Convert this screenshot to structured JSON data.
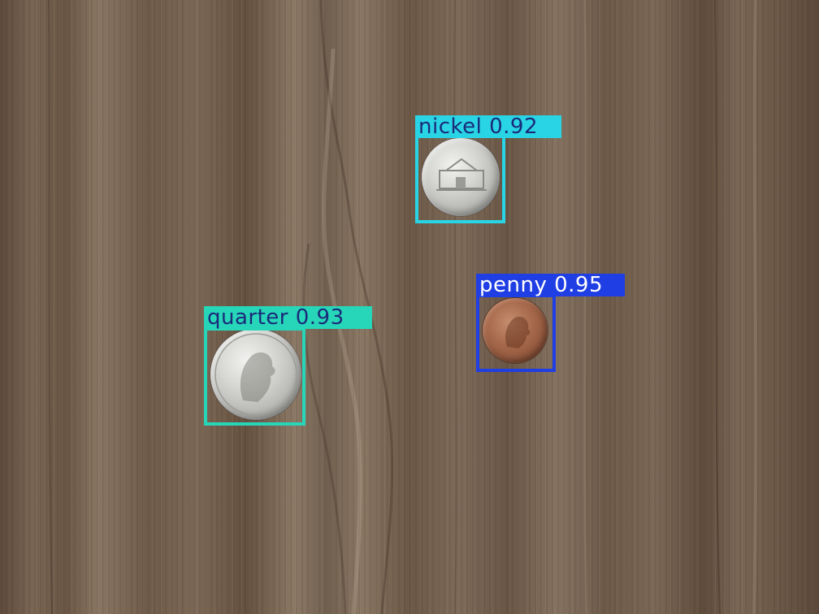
{
  "detections": [
    {
      "class_name": "nickel",
      "confidence": "0.92",
      "box_color": "#29d4e4",
      "text_color": "#1a2b7a"
    },
    {
      "class_name": "penny",
      "confidence": "0.95",
      "box_color": "#1f3ee3",
      "text_color": "#ffffff"
    },
    {
      "class_name": "quarter",
      "confidence": "0.93",
      "box_color": "#27d6b8",
      "text_color": "#1a2b7a"
    }
  ]
}
